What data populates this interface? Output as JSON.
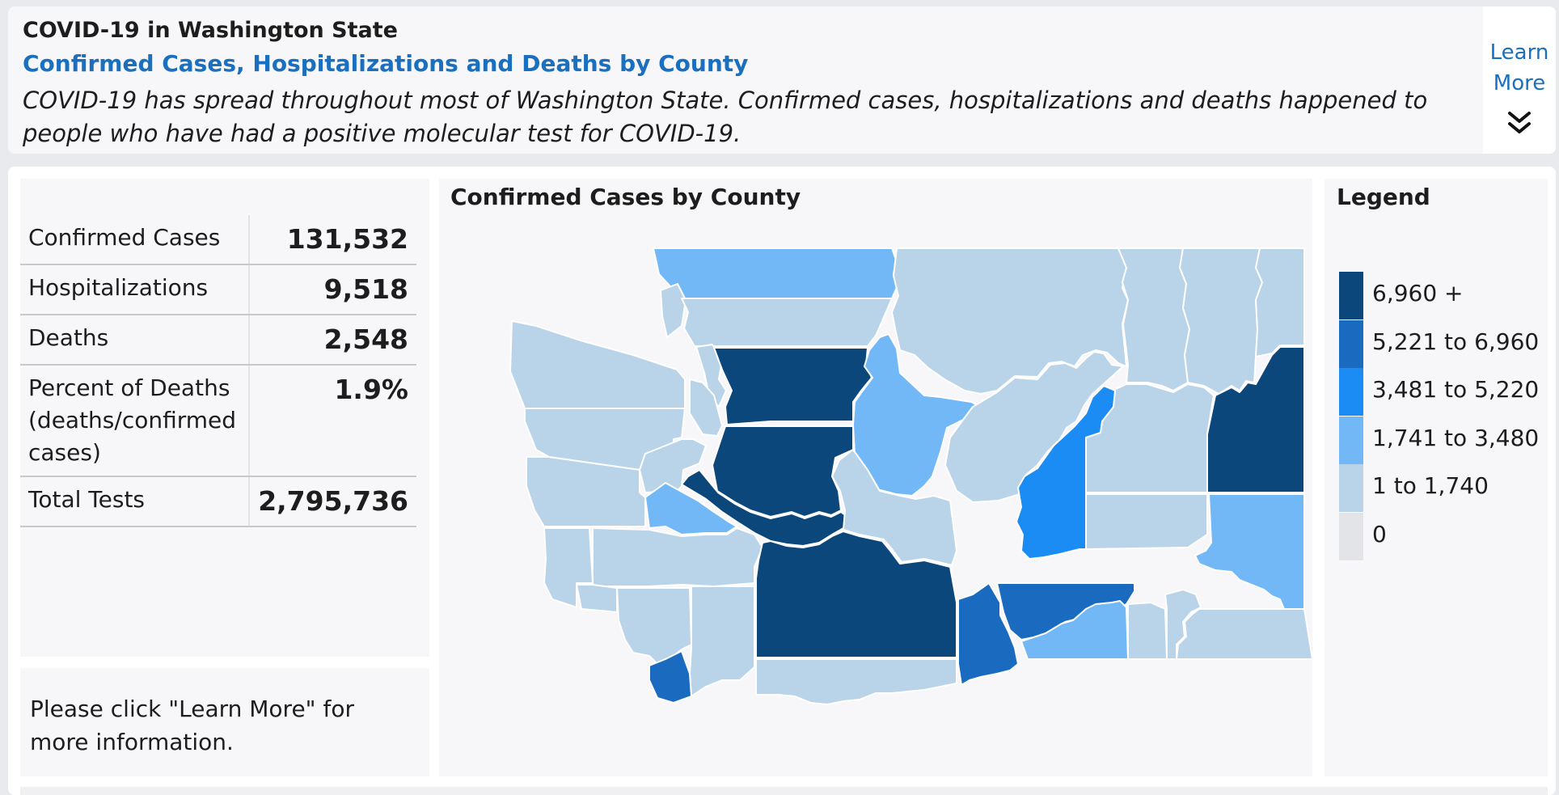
{
  "header": {
    "title": "COVID-19 in Washington State",
    "subtitle": "Confirmed Cases, Hospitalizations and Deaths by County",
    "description": "COVID-19 has spread throughout most of Washington State. Confirmed cases, hospitalizations and deaths happened to people who have had a positive molecular test for COVID-19.",
    "learn_more": "Learn More",
    "expand_icon": "double-chevron-down-icon"
  },
  "stats": [
    {
      "label": "Confirmed Cases",
      "value": "131,532"
    },
    {
      "label": "Hospitalizations",
      "value": "9,518"
    },
    {
      "label": "Deaths",
      "value": "2,548"
    },
    {
      "label": "Percent of Deaths (deaths/confirmed cases)",
      "value": "1.9%"
    },
    {
      "label": "Total Tests",
      "value": "2,795,736"
    }
  ],
  "note": "Please click \"Learn More\" for more information.",
  "map": {
    "title": "Confirmed Cases by County"
  },
  "legend": {
    "title": "Legend",
    "items": [
      {
        "label": "6,960 +",
        "color": "#0c477c"
      },
      {
        "label": "5,221 to 6,960",
        "color": "#1a6ac0"
      },
      {
        "label": "3,481 to 5,220",
        "color": "#1a8cf3"
      },
      {
        "label": "1,741 to 3,480",
        "color": "#72b8f7"
      },
      {
        "label": "1 to 1,740",
        "color": "#b9d3e9"
      },
      {
        "label": "0",
        "color": "#e3e4e8"
      }
    ]
  },
  "colors": {
    "accent": "#1a6fbf",
    "class_6960_plus": "#0c477c",
    "class_5221_6960": "#1a6ac0",
    "class_3481_5220": "#1a8cf3",
    "class_1741_3480": "#72b8f7",
    "class_1_1740": "#b9d3e9",
    "class_0": "#e3e4e8"
  }
}
